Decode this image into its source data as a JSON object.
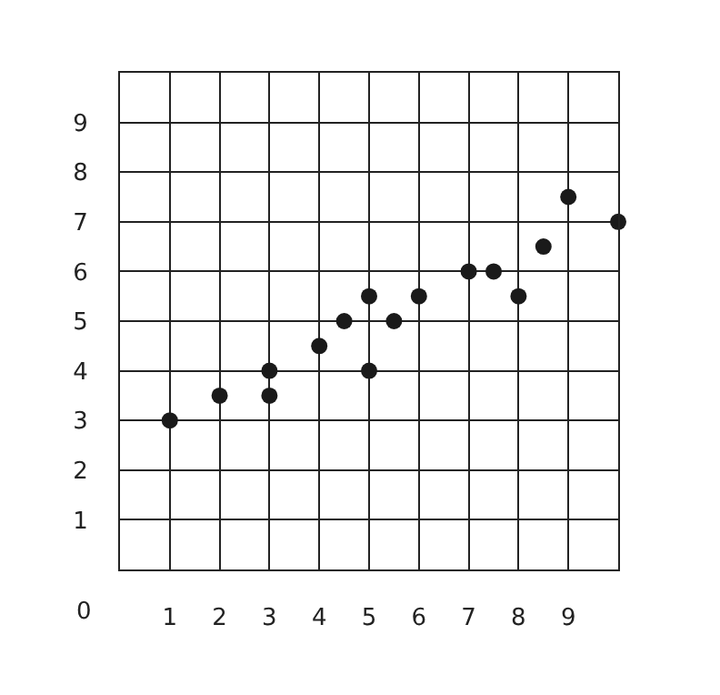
{
  "chart_data": {
    "type": "scatter",
    "x": [
      1,
      2,
      3,
      3,
      4,
      4.5,
      5,
      5,
      5.5,
      6,
      7,
      7.5,
      8,
      8.5,
      9,
      10
    ],
    "values": [
      3,
      3.5,
      3.5,
      4,
      4.5,
      5,
      4,
      5.5,
      5,
      5.5,
      6,
      6,
      5.5,
      6.5,
      7.5,
      7
    ],
    "color": "#1a1a1a",
    "marker": "circle",
    "xlim": [
      0,
      10
    ],
    "ylim": [
      0,
      10
    ],
    "xticks": [
      1,
      2,
      3,
      4,
      5,
      6,
      7,
      8,
      9
    ],
    "yticks": [
      1,
      2,
      3,
      4,
      5,
      6,
      7,
      8,
      9
    ],
    "grid": true,
    "annotations": [
      "0"
    ]
  }
}
